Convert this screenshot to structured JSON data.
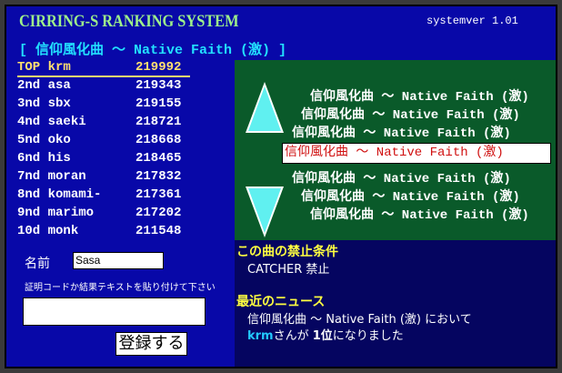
{
  "header": {
    "title": "CIRRING-S RANKING SYSTEM",
    "version": "systemver 1.01"
  },
  "current_song": "[ 信仰風化曲 ～ Native Faith (激) ]",
  "ranking": [
    {
      "rank": "TOP",
      "name": "krm",
      "score": "219992"
    },
    {
      "rank": "2nd",
      "name": "asa",
      "score": "219343"
    },
    {
      "rank": "3nd",
      "name": "sbx",
      "score": "219155"
    },
    {
      "rank": "4nd",
      "name": "saeki",
      "score": "218721"
    },
    {
      "rank": "5nd",
      "name": "oko",
      "score": "218668"
    },
    {
      "rank": "6nd",
      "name": "his",
      "score": "218465"
    },
    {
      "rank": "7nd",
      "name": "moran",
      "score": "217832"
    },
    {
      "rank": "8nd",
      "name": "komami-",
      "score": "217361"
    },
    {
      "rank": "9nd",
      "name": "marimo",
      "score": "217202"
    },
    {
      "rank": "10d",
      "name": "monk",
      "score": "211548"
    }
  ],
  "song_list": {
    "items": [
      "信仰風化曲 ～ Native Faith (激)",
      "信仰風化曲 ～ Native Faith (激)",
      "信仰風化曲 ～ Native Faith (激)",
      "信仰風化曲 ～ Native Faith (激)",
      "信仰風化曲 ～ Native Faith (激)",
      "信仰風化曲 ～ Native Faith (激)",
      "信仰風化曲 ～ Native Faith (激)"
    ],
    "selected_index": 3,
    "up_icon": "triangle-up",
    "down_icon": "triangle-down"
  },
  "form": {
    "name_label": "名前",
    "name_value": "Sasa",
    "hint": "証明コードか結果テキストを貼り付けて下さい",
    "code_value": "",
    "submit_label": "登録する"
  },
  "restrictions": {
    "heading": "この曲の禁止条件",
    "text": "CATCHER 禁止"
  },
  "news": {
    "heading": "最近のニュース",
    "line1": "信仰風化曲 ～ Native Faith (激) において",
    "user": "krm",
    "line2a": "さんが ",
    "rank": "1位",
    "line2b": "になりました"
  },
  "colors": {
    "background": "#0808a8",
    "panel": "#0a5a2a",
    "news_bg": "#050560",
    "title": "#9ef08a",
    "song": "#22e0ff",
    "heading": "#ffff40",
    "selected_text": "#d01010"
  }
}
